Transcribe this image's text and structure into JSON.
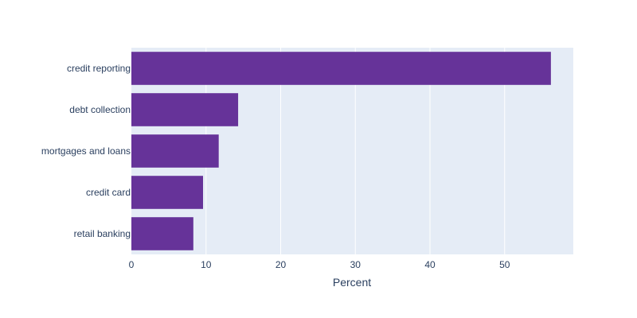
{
  "chart_data": {
    "type": "bar",
    "orientation": "horizontal",
    "categories": [
      "credit reporting",
      "debt collection",
      "mortgages and loans",
      "credit card",
      "retail banking"
    ],
    "values": [
      56.2,
      14.3,
      11.7,
      9.6,
      8.3
    ],
    "xlabel": "Percent",
    "ylabel": "",
    "xlim": [
      0,
      59.2
    ],
    "x_ticks": [
      0,
      10,
      20,
      30,
      40,
      50
    ],
    "grid": true,
    "colors": {
      "bar": "#663399",
      "plot_background": "#E5ECF6",
      "gridline": "#ffffff",
      "text": "#2a3f5f"
    }
  }
}
